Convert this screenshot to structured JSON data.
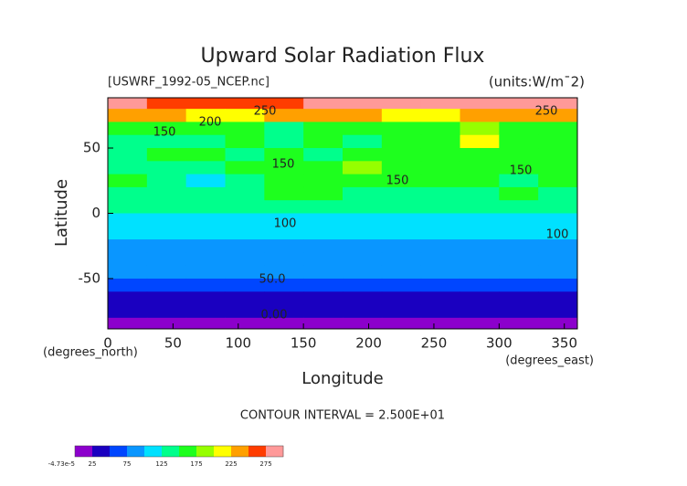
{
  "chart_data": {
    "type": "contour",
    "title": "Upward Solar Radiation Flux",
    "subtitle": "[USWRF_1992-05_NCEP.nc]",
    "units": "(units:W/m¯2)",
    "xlabel": "Longitude",
    "ylabel": "Latitude",
    "xunits": "(degrees_east)",
    "yunits": "(degrees_north)",
    "footer": "CONTOUR INTERVAL = 2.500E+01",
    "xlim": [
      0,
      360
    ],
    "ylim": [
      -88.5,
      88.5
    ],
    "xticks": [
      0,
      50,
      100,
      150,
      200,
      250,
      300,
      350
    ],
    "yticks": [
      -50,
      0,
      50
    ],
    "lon": [
      15,
      45,
      75,
      105,
      135,
      165,
      195,
      225,
      255,
      285,
      315,
      345
    ],
    "lat": [
      85,
      75,
      65,
      55,
      45,
      35,
      25,
      15,
      5,
      -5,
      -15,
      -25,
      -35,
      -45,
      -55,
      -65,
      -75,
      -85
    ],
    "z": [
      [
        280,
        270,
        265,
        260,
        270,
        280,
        280,
        280,
        280,
        280,
        280,
        280
      ],
      [
        240,
        230,
        220,
        210,
        230,
        240,
        230,
        200,
        220,
        240,
        240,
        230
      ],
      [
        150,
        150,
        155,
        150,
        140,
        150,
        160,
        170,
        170,
        190,
        160,
        150
      ],
      [
        140,
        140,
        145,
        150,
        140,
        150,
        140,
        160,
        150,
        200,
        170,
        150
      ],
      [
        140,
        150,
        160,
        140,
        150,
        140,
        160,
        170,
        160,
        160,
        160,
        160
      ],
      [
        140,
        140,
        130,
        150,
        160,
        170,
        190,
        160,
        150,
        160,
        150,
        150
      ],
      [
        150,
        140,
        110,
        140,
        150,
        170,
        170,
        150,
        150,
        170,
        140,
        150
      ],
      [
        140,
        140,
        140,
        140,
        160,
        150,
        140,
        140,
        140,
        140,
        150,
        140
      ],
      [
        130,
        140,
        130,
        140,
        130,
        130,
        140,
        130,
        140,
        140,
        130,
        135
      ],
      [
        120,
        120,
        110,
        120,
        115,
        110,
        110,
        110,
        120,
        110,
        115,
        115
      ],
      [
        110,
        100,
        100,
        105,
        100,
        100,
        105,
        110,
        110,
        100,
        100,
        110
      ],
      [
        95,
        90,
        95,
        95,
        90,
        90,
        95,
        95,
        90,
        95,
        90,
        90
      ],
      [
        85,
        85,
        85,
        85,
        85,
        85,
        85,
        85,
        85,
        85,
        85,
        85
      ],
      [
        75,
        78,
        75,
        78,
        75,
        75,
        78,
        75,
        78,
        75,
        78,
        78
      ],
      [
        60,
        60,
        60,
        60,
        60,
        60,
        60,
        60,
        60,
        60,
        60,
        60
      ],
      [
        40,
        40,
        40,
        40,
        40,
        40,
        40,
        40,
        40,
        40,
        40,
        40
      ],
      [
        30,
        30,
        30,
        30,
        30,
        30,
        30,
        30,
        30,
        30,
        30,
        30
      ],
      [
        0,
        0,
        0,
        0,
        0,
        0,
        0,
        0,
        0,
        0,
        0,
        0
      ]
    ],
    "contour_labels": [
      "250",
      "200",
      "150",
      "150",
      "150",
      "150",
      "250",
      "100",
      "100",
      "50.0",
      "0.00"
    ],
    "colorbar": {
      "levels": [
        0,
        25,
        50,
        75,
        100,
        125,
        150,
        175,
        200,
        225,
        250,
        275,
        300
      ],
      "colors": [
        "#8c00cc",
        "#1a00c0",
        "#0046ff",
        "#0a96ff",
        "#00e1ff",
        "#00ff8c",
        "#1eff1e",
        "#96ff00",
        "#ffff00",
        "#ffa000",
        "#ff3c00",
        "#ff9999"
      ],
      "ticks": [
        {
          "value": -4.73e-05,
          "label": "-4.73e-5"
        },
        25,
        75,
        125,
        175,
        225,
        275
      ]
    }
  }
}
